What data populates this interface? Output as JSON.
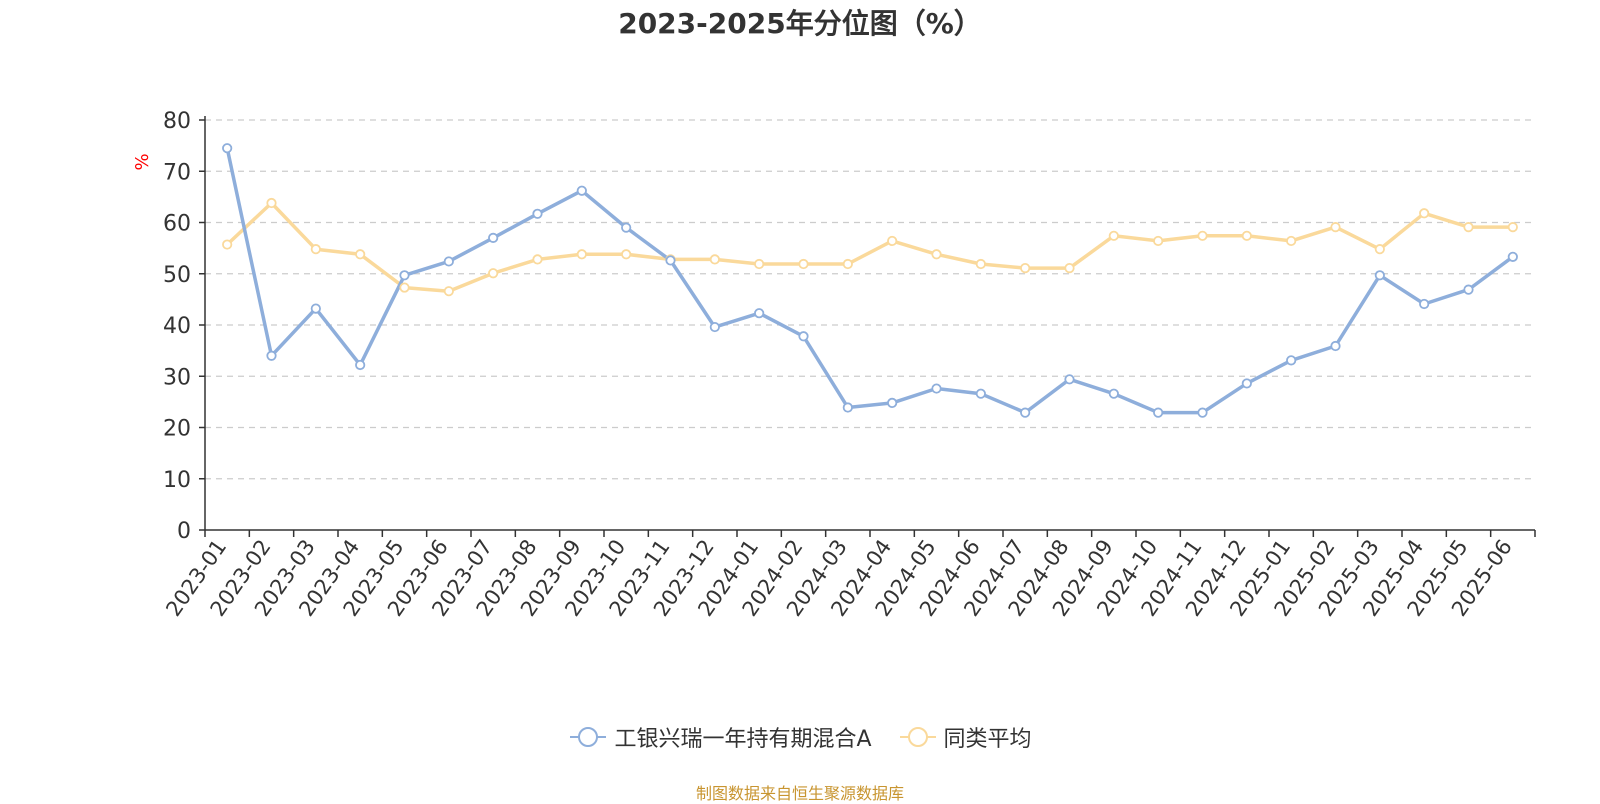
{
  "chart_data": {
    "type": "line",
    "title": "2023-2025年分位图（%）",
    "ylabel": "%",
    "xlabel": "",
    "ylim": [
      0,
      80
    ],
    "yticks": [
      0,
      10,
      20,
      30,
      40,
      50,
      60,
      70,
      80
    ],
    "grid": "horizontal dashed",
    "legend_position": "bottom-center",
    "categories": [
      "2023-01",
      "2023-02",
      "2023-03",
      "2023-04",
      "2023-05",
      "2023-06",
      "2023-07",
      "2023-08",
      "2023-09",
      "2023-10",
      "2023-11",
      "2023-12",
      "2024-01",
      "2024-02",
      "2024-03",
      "2024-04",
      "2024-05",
      "2024-06",
      "2024-07",
      "2024-08",
      "2024-09",
      "2024-10",
      "2024-11",
      "2024-12",
      "2025-01",
      "2025-02",
      "2025-03",
      "2025-04",
      "2025-05",
      "2025-06"
    ],
    "series": [
      {
        "name": "工银兴瑞一年持有期混合A",
        "color": "#8eaedb",
        "values": [
          74.5,
          34,
          43.2,
          32.2,
          49.7,
          52.4,
          57,
          61.7,
          66.2,
          59,
          52.6,
          39.6,
          42.3,
          37.8,
          23.9,
          24.8,
          27.6,
          26.6,
          22.9,
          29.4,
          26.6,
          22.9,
          22.9,
          28.6,
          33.1,
          35.9,
          49.7,
          44.1,
          46.9,
          53.3
        ]
      },
      {
        "name": "同类平均",
        "color": "#fad99b",
        "values": [
          55.7,
          63.8,
          54.8,
          53.8,
          47.3,
          46.6,
          50.1,
          52.8,
          53.8,
          53.8,
          52.8,
          52.8,
          51.9,
          51.9,
          51.9,
          56.4,
          53.8,
          51.9,
          51.1,
          51.1,
          57.4,
          56.4,
          57.4,
          57.4,
          56.4,
          59.1,
          54.8,
          61.8,
          59.1,
          59.1
        ]
      }
    ]
  },
  "footer": {
    "source_text": "制图数据来自恒生聚源数据库"
  }
}
